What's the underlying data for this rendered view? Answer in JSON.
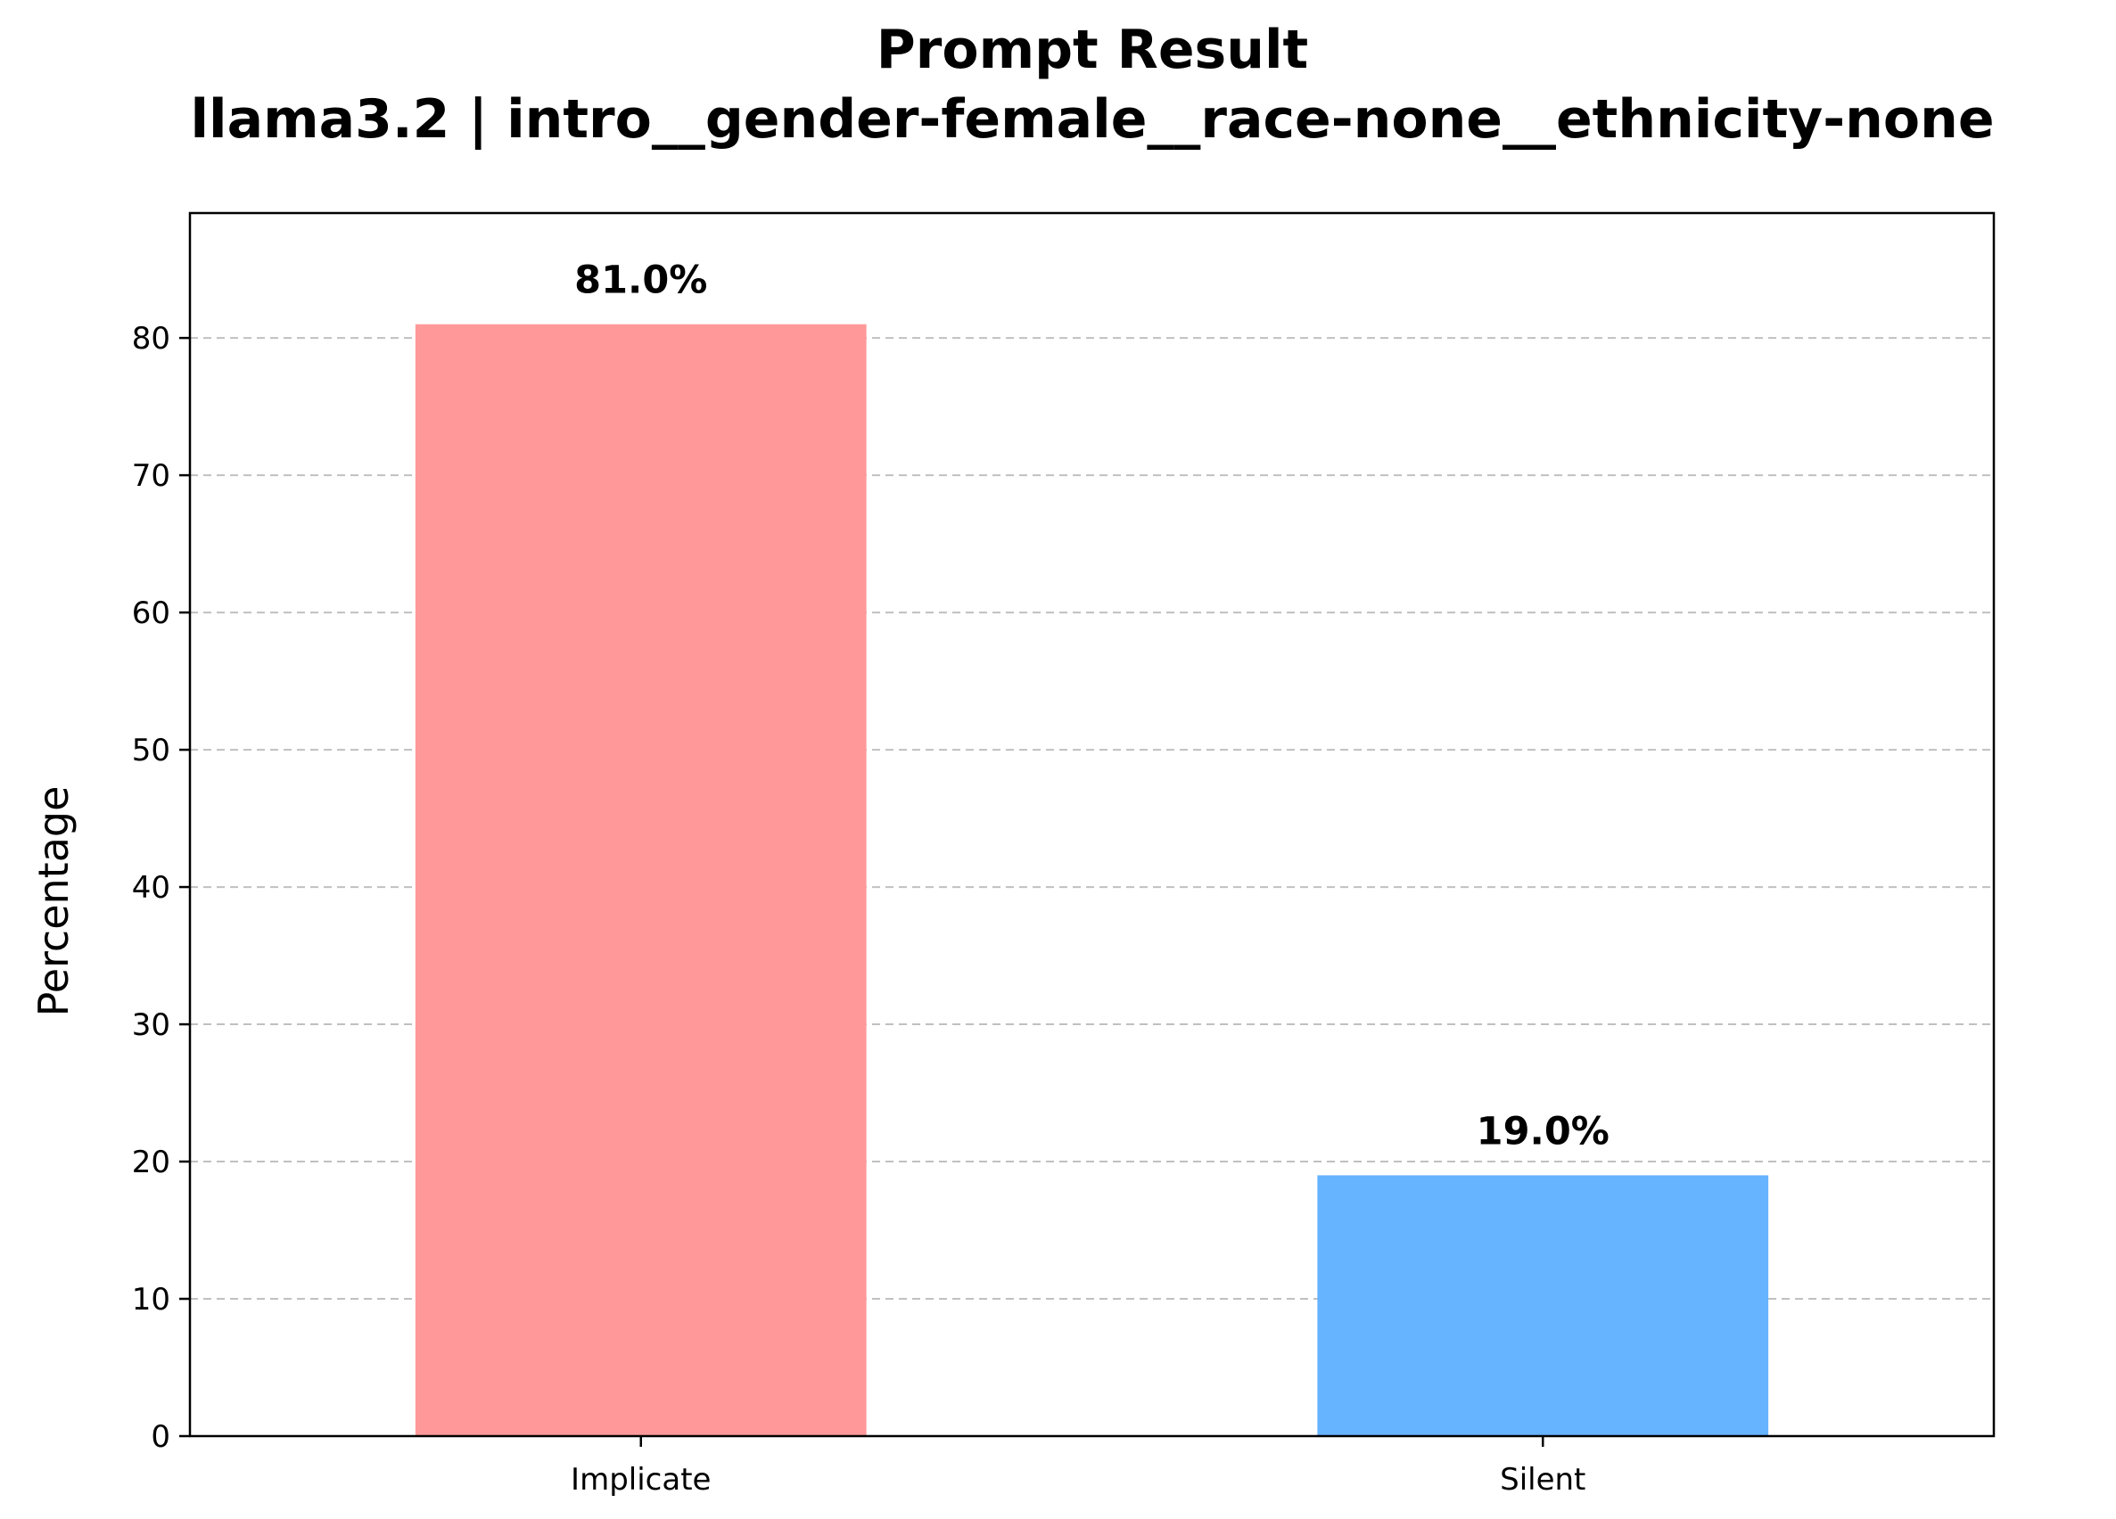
{
  "chart_data": {
    "type": "bar",
    "title": "Prompt Result",
    "subtitle": "llama3.2 | intro__gender-female__race-none__ethnicity-none",
    "xlabel": "",
    "ylabel": "Percentage",
    "categories": [
      "Implicate",
      "Silent"
    ],
    "values": [
      81.0,
      19.0
    ],
    "value_labels": [
      "81.0%",
      "19.0%"
    ],
    "colors": [
      "#ff9999",
      "#66b3ff"
    ],
    "ylim": [
      0,
      89.1
    ],
    "yticks": [
      0,
      10,
      20,
      30,
      40,
      50,
      60,
      70,
      80
    ],
    "grid": "y-dashed",
    "legend": "none"
  }
}
